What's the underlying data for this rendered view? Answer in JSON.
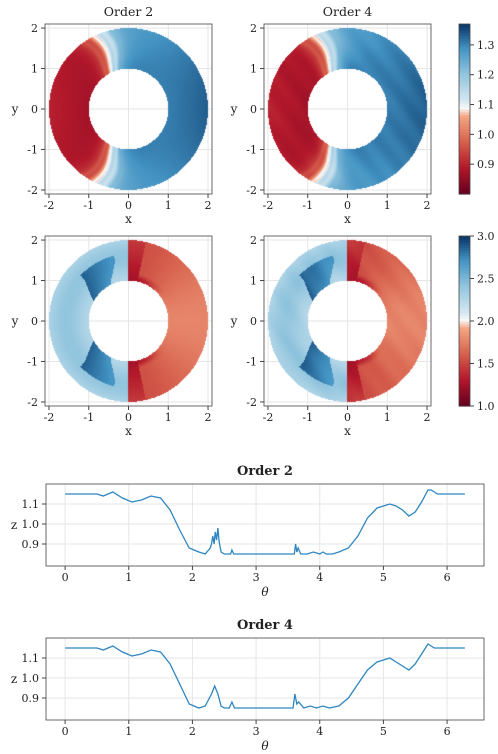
{
  "chart_data": [
    {
      "type": "heatmap",
      "panel": "top-left",
      "title": "Order 2",
      "xlabel": "x",
      "ylabel": "y",
      "xlim": [
        -2.1,
        2.1
      ],
      "ylim": [
        -2.1,
        2.1
      ],
      "xticks": [
        -2,
        -1,
        0,
        1,
        2
      ],
      "yticks": [
        -2,
        -1,
        0,
        1,
        2
      ],
      "annulus": {
        "inner_radius": 1.0,
        "outer_radius": 2.0
      },
      "field": {
        "kind": "pressure",
        "shock_angles_deg": [
          135,
          225
        ],
        "low": 0.82,
        "high": 1.35
      },
      "grid": true
    },
    {
      "type": "heatmap",
      "panel": "top-right",
      "title": "Order 4",
      "xlabel": "x",
      "ylabel": "y",
      "xlim": [
        -2.1,
        2.1
      ],
      "ylim": [
        -2.1,
        2.1
      ],
      "xticks": [
        -2,
        -1,
        0,
        1,
        2
      ],
      "yticks": [
        -2,
        -1,
        0,
        1,
        2
      ],
      "annulus": {
        "inner_radius": 1.0,
        "outer_radius": 2.0
      },
      "field": {
        "kind": "pressure",
        "shock_angles_deg": [
          135,
          225
        ],
        "low": 0.82,
        "high": 1.35
      },
      "colorbar": {
        "min": 0.8,
        "max": 1.37,
        "ticks": [
          "0.9",
          "1.0",
          "1.1",
          "1.2",
          "1.3"
        ],
        "tick_values": [
          0.9,
          1.0,
          1.1,
          1.2,
          1.3
        ]
      },
      "grid": true
    },
    {
      "type": "heatmap",
      "panel": "middle-left",
      "xlabel": "x",
      "ylabel": "y",
      "xlim": [
        -2.1,
        2.1
      ],
      "ylim": [
        -2.1,
        2.1
      ],
      "xticks": [
        -2,
        -1,
        0,
        1,
        2
      ],
      "yticks": [
        -2,
        -1,
        0,
        1,
        2
      ],
      "annulus": {
        "inner_radius": 1.0,
        "outer_radius": 2.0
      },
      "field": {
        "kind": "density",
        "shock_angles_deg": [
          120,
          240
        ]
      },
      "grid": true
    },
    {
      "type": "heatmap",
      "panel": "middle-right",
      "xlabel": "x",
      "ylabel": "y",
      "xlim": [
        -2.1,
        2.1
      ],
      "ylim": [
        -2.1,
        2.1
      ],
      "xticks": [
        -2,
        -1,
        0,
        1,
        2
      ],
      "yticks": [
        -2,
        -1,
        0,
        1,
        2
      ],
      "annulus": {
        "inner_radius": 1.0,
        "outer_radius": 2.0
      },
      "field": {
        "kind": "density",
        "shock_angles_deg": [
          120,
          240
        ]
      },
      "colorbar": {
        "min": 1.0,
        "max": 3.0,
        "ticks": [
          "1.0",
          "1.5",
          "2.0",
          "2.5",
          "3.0"
        ],
        "tick_values": [
          1.0,
          1.5,
          2.0,
          2.5,
          3.0
        ]
      },
      "grid": true
    },
    {
      "type": "line",
      "panel": "bottom-1",
      "title": "Order 2",
      "xlabel": "θ",
      "ylabel": "z",
      "xlim": [
        -0.3,
        6.58
      ],
      "ylim": [
        0.79,
        1.2
      ],
      "xticks": [
        "0",
        "1",
        "2",
        "3",
        "4",
        "5",
        "6"
      ],
      "xtick_values": [
        0,
        1,
        2,
        3,
        4,
        5,
        6
      ],
      "yticks": [
        "0.9",
        "1.0",
        "1.1"
      ],
      "ytick_values": [
        0.9,
        1.0,
        1.1
      ],
      "grid": true,
      "series": [
        {
          "color": "#2e86c1",
          "x": [
            0,
            0.5,
            0.6,
            0.75,
            0.9,
            1.05,
            1.2,
            1.35,
            1.5,
            1.65,
            1.8,
            1.95,
            2.1,
            2.2,
            2.28,
            2.3,
            2.32,
            2.34,
            2.36,
            2.38,
            2.4,
            2.42,
            2.45,
            2.5,
            2.55,
            2.6,
            2.62,
            2.65,
            2.7,
            3.0,
            3.3,
            3.6,
            3.62,
            3.64,
            3.66,
            3.7,
            3.8,
            3.9,
            4.0,
            4.05,
            4.1,
            4.2,
            4.3,
            4.45,
            4.6,
            4.75,
            4.9,
            5.0,
            5.1,
            5.2,
            5.3,
            5.4,
            5.5,
            5.6,
            5.7,
            5.75,
            5.85,
            6.0,
            6.28
          ],
          "y": [
            1.15,
            1.15,
            1.14,
            1.16,
            1.13,
            1.11,
            1.12,
            1.14,
            1.13,
            1.07,
            0.97,
            0.88,
            0.86,
            0.85,
            0.88,
            0.9,
            0.94,
            0.9,
            0.96,
            0.92,
            0.98,
            0.91,
            0.86,
            0.85,
            0.85,
            0.85,
            0.87,
            0.85,
            0.85,
            0.85,
            0.85,
            0.85,
            0.9,
            0.86,
            0.88,
            0.85,
            0.85,
            0.86,
            0.85,
            0.86,
            0.85,
            0.85,
            0.86,
            0.88,
            0.94,
            1.03,
            1.08,
            1.09,
            1.1,
            1.09,
            1.07,
            1.04,
            1.06,
            1.11,
            1.17,
            1.17,
            1.15,
            1.15,
            1.15
          ]
        }
      ]
    },
    {
      "type": "line",
      "panel": "bottom-2",
      "title": "Order 4",
      "xlabel": "θ",
      "ylabel": "z",
      "xlim": [
        -0.3,
        6.58
      ],
      "ylim": [
        0.79,
        1.2
      ],
      "xticks": [
        "0",
        "1",
        "2",
        "3",
        "4",
        "5",
        "6"
      ],
      "xtick_values": [
        0,
        1,
        2,
        3,
        4,
        5,
        6
      ],
      "yticks": [
        "0.9",
        "1.0",
        "1.1"
      ],
      "ytick_values": [
        0.9,
        1.0,
        1.1
      ],
      "grid": true,
      "series": [
        {
          "color": "#2e86c1",
          "x": [
            0,
            0.5,
            0.6,
            0.75,
            0.9,
            1.05,
            1.2,
            1.35,
            1.5,
            1.65,
            1.8,
            1.95,
            2.1,
            2.2,
            2.3,
            2.35,
            2.4,
            2.45,
            2.5,
            2.58,
            2.62,
            2.66,
            2.7,
            3.0,
            3.3,
            3.58,
            3.61,
            3.64,
            3.67,
            3.75,
            3.85,
            3.95,
            4.05,
            4.15,
            4.3,
            4.45,
            4.6,
            4.75,
            4.9,
            5.0,
            5.1,
            5.2,
            5.3,
            5.4,
            5.5,
            5.6,
            5.7,
            5.8,
            6.0,
            6.28
          ],
          "y": [
            1.15,
            1.15,
            1.14,
            1.16,
            1.13,
            1.11,
            1.12,
            1.14,
            1.13,
            1.07,
            0.97,
            0.87,
            0.85,
            0.86,
            0.92,
            0.96,
            0.92,
            0.86,
            0.85,
            0.85,
            0.88,
            0.85,
            0.85,
            0.85,
            0.85,
            0.85,
            0.92,
            0.87,
            0.88,
            0.85,
            0.86,
            0.85,
            0.86,
            0.85,
            0.86,
            0.9,
            0.97,
            1.04,
            1.08,
            1.09,
            1.1,
            1.08,
            1.06,
            1.04,
            1.07,
            1.12,
            1.17,
            1.15,
            1.15,
            1.15
          ]
        }
      ]
    }
  ]
}
